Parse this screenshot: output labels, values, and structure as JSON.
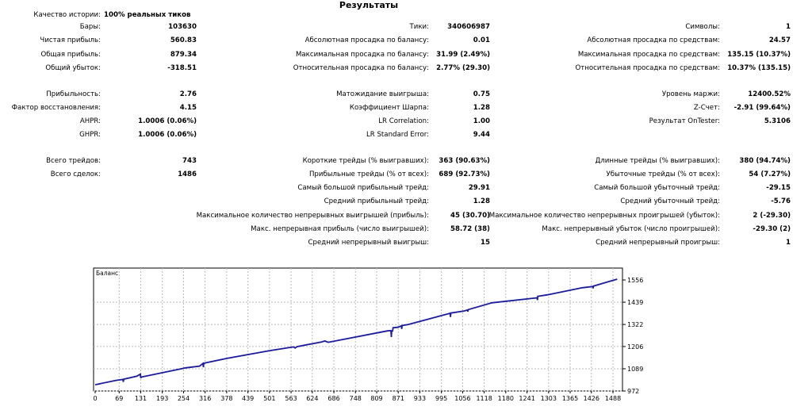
{
  "title": "Результаты",
  "history_quality": {
    "label": "Качество истории:",
    "value": "100% реальных тиков"
  },
  "rows": [
    {
      "y": "r2",
      "cells": [
        "Бары:",
        "103630",
        "Тики:",
        "340606987",
        "Символы:",
        "1"
      ]
    },
    {
      "y": "r3",
      "cells": [
        "Чистая прибыль:",
        "560.83",
        "Абсолютная просадка по балансу:",
        "0.01",
        "Абсолютная просадка по средствам:",
        "24.57"
      ]
    },
    {
      "y": "r4",
      "cells": [
        "Общая прибыль:",
        "879.34",
        "Максимальная просадка по балансу:",
        "31.99 (2.49%)",
        "Максимальная просадка по средствам:",
        "135.15 (10.37%)"
      ]
    },
    {
      "y": "r5",
      "cells": [
        "Общий убыток:",
        "-318.51",
        "Относительная просадка по балансу:",
        "2.77% (29.30)",
        "Относительная просадка по средствам:",
        "10.37% (135.15)"
      ]
    },
    {
      "y": "r6",
      "cells": [
        "Прибыльность:",
        "2.76",
        "Матожидание выигрыша:",
        "0.75",
        "Уровень маржи:",
        "12400.52%"
      ]
    },
    {
      "y": "r7",
      "cells": [
        "Фактор восстановления:",
        "4.15",
        "Коэффициент Шарпа:",
        "1.28",
        "Z-Счет:",
        "-2.91 (99.64%)"
      ]
    },
    {
      "y": "r8",
      "cells": [
        "AHPR:",
        "1.0006 (0.06%)",
        "LR Correlation:",
        "1.00",
        "Результат OnTester:",
        "5.3106"
      ]
    },
    {
      "y": "r9",
      "cells": [
        "GHPR:",
        "1.0006 (0.06%)",
        "LR Standard Error:",
        "9.44",
        "",
        ""
      ]
    },
    {
      "y": "r10",
      "cells": [
        "Всего трейдов:",
        "743",
        "Короткие трейды (% выигравших):",
        "363 (90.63%)",
        "Длинные трейды (% выигравших):",
        "380 (94.74%)"
      ]
    },
    {
      "y": "r11",
      "cells": [
        "Всего сделок:",
        "1486",
        "Прибыльные трейды (% от всех):",
        "689 (92.73%)",
        "Убыточные трейды (% от всех):",
        "54 (7.27%)"
      ]
    },
    {
      "y": "r12",
      "cells": [
        "",
        "",
        "Самый большой прибыльный трейд:",
        "29.91",
        "Самый большой убыточный трейд:",
        "-29.15"
      ]
    },
    {
      "y": "r13",
      "cells": [
        "",
        "",
        "Средний прибыльный трейд:",
        "1.28",
        "Средний убыточный трейд:",
        "-5.76"
      ]
    },
    {
      "y": "r14",
      "cells": [
        "",
        "",
        "Максимальное количество непрерывных выигрышей (прибыль):",
        "45 (30.70)",
        "Максимальное количество непрерывных проигрышей (убыток):",
        "2 (-29.30)"
      ]
    },
    {
      "y": "r15",
      "cells": [
        "",
        "",
        "Макс. непрерывная прибыль (число выигрышей):",
        "58.72 (38)",
        "Макс. непрерывный убыток (число проигрышей):",
        "-29.30 (2)"
      ]
    },
    {
      "y": "r16",
      "cells": [
        "",
        "",
        "Средний непрерывный выигрыш:",
        "15",
        "Средний непрерывный проигрыш:",
        "1"
      ]
    }
  ],
  "chart_data": {
    "type": "line",
    "title": "Баланс",
    "line_color": "#1a1a9c",
    "grid": true,
    "ylim": [
      972,
      1556
    ],
    "xlim": [
      0,
      1500
    ],
    "y_ticks": [
      "1556",
      "1439",
      "1322",
      "1206",
      "1089",
      "972"
    ],
    "x_ticks": [
      "0",
      "69",
      "131",
      "193",
      "254",
      "316",
      "378",
      "439",
      "501",
      "563",
      "624",
      "686",
      "748",
      "809",
      "871",
      "933",
      "995",
      "1056",
      "1118",
      "1180",
      "1241",
      "1303",
      "1365",
      "1426",
      "1488"
    ],
    "series": [
      {
        "x": [
          0,
          60,
          80,
          81,
          82,
          120,
          130,
          131,
          132,
          250,
          260,
          300,
          310,
          311,
          312,
          380,
          500,
          570,
          575,
          580,
          650,
          660,
          670,
          840,
          850,
          851,
          852,
          855,
          856,
          870,
          880,
          881,
          882,
          900,
          1020,
          1021,
          1022,
          1060,
          1070,
          1071,
          1072,
          1140,
          1260,
          1270,
          1271,
          1272,
          1300,
          1400,
          1430,
          1431,
          1432,
          1500
        ],
        "y": [
          1005,
          1028,
          1033,
          1020,
          1034,
          1050,
          1061,
          1040,
          1045,
          1090,
          1094,
          1103,
          1117,
          1097,
          1118,
          1144,
          1184,
          1204,
          1198,
          1205,
          1230,
          1235,
          1228,
          1288,
          1290,
          1256,
          1285,
          1288,
          1305,
          1307,
          1315,
          1298,
          1316,
          1322,
          1381,
          1361,
          1382,
          1393,
          1398,
          1390,
          1400,
          1436,
          1460,
          1462,
          1450,
          1470,
          1478,
          1515,
          1522,
          1512,
          1524,
          1560
        ]
      }
    ]
  }
}
